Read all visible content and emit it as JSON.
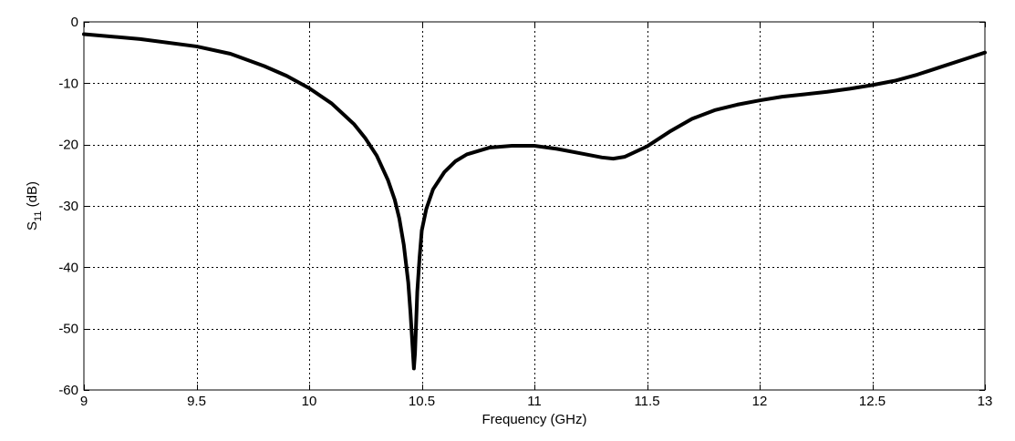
{
  "chart_data": {
    "type": "line",
    "title": "",
    "xlabel": "Frequency (GHz)",
    "ylabel": {
      "main": "S",
      "subscript": "11",
      "suffix": " (dB)"
    },
    "xlim": [
      9,
      13
    ],
    "ylim": [
      -60,
      0
    ],
    "xticks": [
      9,
      9.5,
      10,
      10.5,
      11,
      11.5,
      12,
      12.5,
      13
    ],
    "xtick_labels": [
      "9",
      "9.5",
      "10",
      "10.5",
      "11",
      "11.5",
      "12",
      "12.5",
      "13"
    ],
    "yticks": [
      0,
      -10,
      -20,
      -30,
      -40,
      -50,
      -60
    ],
    "ytick_labels": [
      "0",
      "-10",
      "-20",
      "-30",
      "-40",
      "-50",
      "-60"
    ],
    "grid": true,
    "grid_style": "dashed",
    "line_color": "#000000",
    "series": [
      {
        "x": [
          9.0,
          9.25,
          9.5,
          9.65,
          9.8,
          9.9,
          10.0,
          10.1,
          10.2,
          10.25,
          10.3,
          10.35,
          10.38,
          10.4,
          10.42,
          10.44,
          10.45,
          10.46,
          10.465,
          10.47,
          10.475,
          10.48,
          10.49,
          10.5,
          10.52,
          10.55,
          10.6,
          10.65,
          10.7,
          10.8,
          10.9,
          11.0,
          11.1,
          11.2,
          11.3,
          11.35,
          11.4,
          11.5,
          11.6,
          11.7,
          11.8,
          11.9,
          12.0,
          12.1,
          12.2,
          12.3,
          12.4,
          12.5,
          12.6,
          12.7,
          12.8,
          12.9,
          13.0
        ],
        "y": [
          -2.0,
          -2.8,
          -4.0,
          -5.2,
          -7.2,
          -8.8,
          -10.8,
          -13.3,
          -16.7,
          -19.0,
          -21.8,
          -25.8,
          -29.0,
          -32.0,
          -36.3,
          -42.5,
          -47.5,
          -53.5,
          -56.5,
          -54.0,
          -49.0,
          -44.0,
          -38.5,
          -34.0,
          -30.5,
          -27.3,
          -24.5,
          -22.7,
          -21.6,
          -20.5,
          -20.2,
          -20.2,
          -20.7,
          -21.4,
          -22.1,
          -22.3,
          -22.0,
          -20.3,
          -17.9,
          -15.8,
          -14.4,
          -13.5,
          -12.8,
          -12.2,
          -11.8,
          -11.4,
          -10.9,
          -10.3,
          -9.6,
          -8.6,
          -7.4,
          -6.2,
          -5.0
        ]
      }
    ]
  }
}
